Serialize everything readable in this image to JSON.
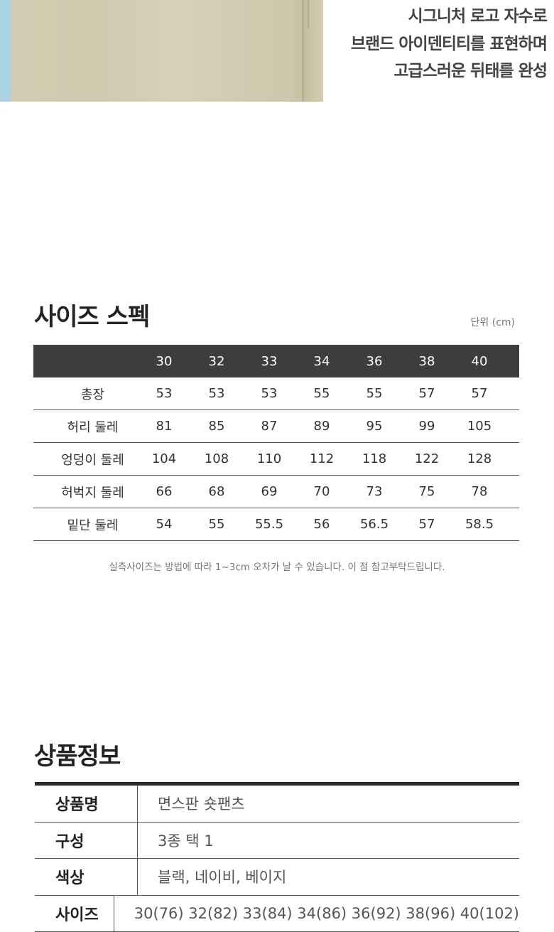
{
  "hero": {
    "lines": [
      "시그니처 로고 자수로",
      "브랜드 아이덴티티를 표현하며",
      "고급스러운 뒤태를 완성"
    ]
  },
  "size_spec": {
    "title": "사이즈 스펙",
    "unit": "단위 (cm)",
    "columns": [
      "30",
      "32",
      "33",
      "34",
      "36",
      "38",
      "40"
    ],
    "rows": [
      {
        "label": "총장",
        "values": [
          "53",
          "53",
          "53",
          "55",
          "55",
          "57",
          "57"
        ]
      },
      {
        "label": "허리 둘레",
        "values": [
          "81",
          "85",
          "87",
          "89",
          "95",
          "99",
          "105"
        ]
      },
      {
        "label": "엉덩이 둘레",
        "values": [
          "104",
          "108",
          "110",
          "112",
          "118",
          "122",
          "128"
        ]
      },
      {
        "label": "허벅지 둘레",
        "values": [
          "66",
          "68",
          "69",
          "70",
          "73",
          "75",
          "78"
        ]
      },
      {
        "label": "밑단 둘레",
        "values": [
          "54",
          "55",
          "55.5",
          "56",
          "56.5",
          "57",
          "58.5"
        ]
      }
    ],
    "note": "실측사이즈는 방법에 따라 1~3cm 오차가 날 수 있습니다. 이 점 참고부탁드립니다."
  },
  "product_info": {
    "title": "상품정보",
    "rows": [
      {
        "label": "상품명",
        "value": "면스판 숏팬츠"
      },
      {
        "label": "구성",
        "value": "3종 택 1"
      },
      {
        "label": "색상",
        "value": "블랙, 네이비, 베이지"
      },
      {
        "label": "사이즈",
        "value": "30(76) 32(82) 33(84) 34(86) 36(92) 38(96) 40(102)"
      }
    ]
  }
}
